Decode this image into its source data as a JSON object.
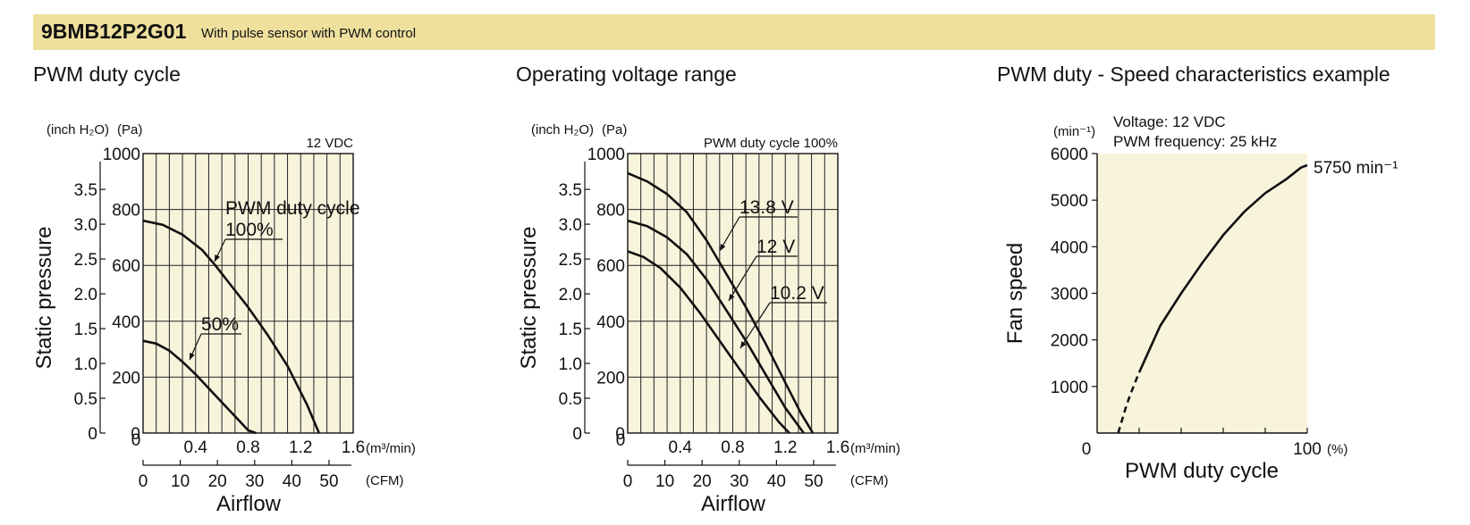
{
  "header": {
    "model": "9BMB12P2G01",
    "description": "With pulse sensor with PWM control",
    "bg_color": "#efe09e"
  },
  "plot_bg_color": "#f8f4dc",
  "chart_data": [
    {
      "type": "line",
      "title": "PWM duty cycle",
      "condition": "12 VDC",
      "xlabel": "Airflow",
      "ylabel": "Static pressure",
      "x_unit_primary": "(m³/min)",
      "x_unit_secondary": "(CFM)",
      "y_unit_primary": "(Pa)",
      "y_unit_secondary": "(inch H₂O)",
      "xlim": [
        0,
        1.6
      ],
      "ylim": [
        0,
        1000
      ],
      "x_ticks": [
        "0.4",
        "0.8",
        "1.2",
        "1.6"
      ],
      "x_zero": "0",
      "cfm_ticks": [
        "0",
        "10",
        "20",
        "30",
        "40",
        "50"
      ],
      "y_ticks": [
        "1000",
        "800",
        "600",
        "400",
        "200",
        "0"
      ],
      "inch_ticks": [
        "3.5",
        "3.0",
        "2.5",
        "2.0",
        "1.5",
        "1.0",
        "0.5",
        "0"
      ],
      "grid": true,
      "series": [
        {
          "name": "100%",
          "label_prefix": "PWM duty cycle",
          "x": [
            0,
            0.15,
            0.3,
            0.45,
            0.55,
            0.65,
            0.8,
            0.95,
            1.1,
            1.25,
            1.34
          ],
          "y": [
            760,
            745,
            710,
            655,
            600,
            540,
            450,
            350,
            240,
            100,
            0
          ]
        },
        {
          "name": "50%",
          "x": [
            0,
            0.1,
            0.2,
            0.3,
            0.4,
            0.5,
            0.6,
            0.7,
            0.8,
            0.86
          ],
          "y": [
            330,
            320,
            295,
            255,
            210,
            160,
            110,
            60,
            10,
            0
          ]
        }
      ]
    },
    {
      "type": "line",
      "title": "Operating voltage range",
      "condition": "PWM duty cycle 100%",
      "xlabel": "Airflow",
      "ylabel": "Static pressure",
      "x_unit_primary": "(m³/min)",
      "x_unit_secondary": "(CFM)",
      "y_unit_primary": "(Pa)",
      "y_unit_secondary": "(inch H₂O)",
      "xlim": [
        0,
        1.6
      ],
      "ylim": [
        0,
        1000
      ],
      "x_ticks": [
        "0.4",
        "0.8",
        "1.2",
        "1.6"
      ],
      "x_zero": "0",
      "cfm_ticks": [
        "0",
        "10",
        "20",
        "30",
        "40",
        "50"
      ],
      "y_ticks": [
        "1000",
        "800",
        "600",
        "400",
        "200",
        "0"
      ],
      "inch_ticks": [
        "3.5",
        "3.0",
        "2.5",
        "2.0",
        "1.5",
        "1.0",
        "0.5",
        "0"
      ],
      "grid": true,
      "series": [
        {
          "name": "13.8 V",
          "x": [
            0,
            0.15,
            0.3,
            0.45,
            0.6,
            0.75,
            0.9,
            1.05,
            1.2,
            1.32,
            1.41
          ],
          "y": [
            930,
            900,
            855,
            790,
            690,
            570,
            450,
            320,
            180,
            70,
            0
          ]
        },
        {
          "name": "12 V",
          "x": [
            0,
            0.15,
            0.3,
            0.45,
            0.6,
            0.75,
            0.9,
            1.05,
            1.2,
            1.34
          ],
          "y": [
            760,
            740,
            700,
            640,
            550,
            440,
            330,
            210,
            90,
            0
          ]
        },
        {
          "name": "10.2 V",
          "x": [
            0,
            0.12,
            0.25,
            0.4,
            0.55,
            0.7,
            0.85,
            1.0,
            1.15,
            1.23
          ],
          "y": [
            650,
            630,
            590,
            520,
            430,
            330,
            230,
            130,
            40,
            0
          ]
        }
      ]
    },
    {
      "type": "line",
      "title": "PWM duty - Speed characteristics example",
      "voltage_note": "Voltage: 12 VDC",
      "frequency_note": "PWM frequency: 25 kHz",
      "xlabel": "PWM duty cycle",
      "ylabel": "Fan speed",
      "y_unit": "(min⁻¹)",
      "x_unit": "(%)",
      "xlim": [
        0,
        100
      ],
      "ylim": [
        0,
        6000
      ],
      "x_ticks": [
        "0",
        "100"
      ],
      "y_ticks": [
        "6000",
        "5000",
        "4000",
        "3000",
        "2000",
        "1000"
      ],
      "grid": false,
      "annotation": "5750 min⁻¹",
      "series": [
        {
          "name": "",
          "x": [
            20,
            30,
            40,
            50,
            60,
            70,
            80,
            90,
            97,
            100
          ],
          "y": [
            1300,
            2300,
            3000,
            3650,
            4250,
            4750,
            5150,
            5450,
            5700,
            5750
          ]
        },
        {
          "name": "",
          "style": "dashed",
          "x": [
            10,
            12,
            14,
            16,
            18,
            20
          ],
          "y": [
            0,
            300,
            600,
            850,
            1080,
            1300
          ]
        }
      ]
    }
  ]
}
